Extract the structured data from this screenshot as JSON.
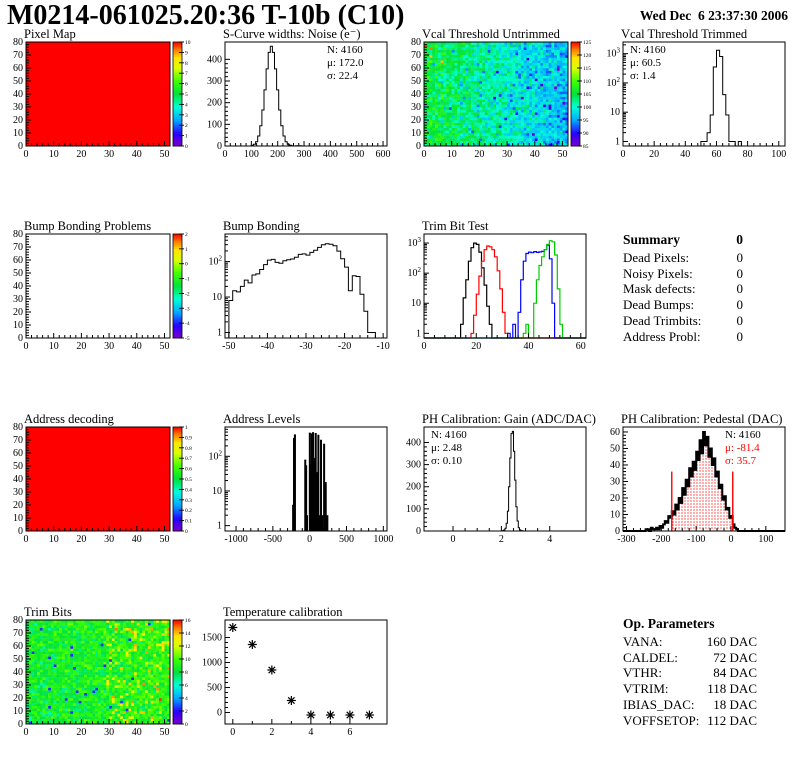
{
  "header": {
    "title": "M0214-061025.20:36 T-10b (C10)",
    "date": "Wed Dec  6 23:37:30 2006"
  },
  "summary": {
    "title": "Summary",
    "total": "0",
    "rows": [
      {
        "label": "Dead Pixels:",
        "value": "0"
      },
      {
        "label": "Noisy Pixels:",
        "value": "0"
      },
      {
        "label": "Mask defects:",
        "value": "0"
      },
      {
        "label": "Dead Bumps:",
        "value": "0"
      },
      {
        "label": "Dead Trimbits:",
        "value": "0"
      },
      {
        "label": "Address Probl:",
        "value": "0"
      }
    ]
  },
  "op_parameters": {
    "title": "Op. Parameters",
    "rows": [
      {
        "label": "VANA:",
        "value": "160 DAC"
      },
      {
        "label": "CALDEL:",
        "value": "72 DAC"
      },
      {
        "label": "VTHR:",
        "value": "84 DAC"
      },
      {
        "label": "VTRIM:",
        "value": "118 DAC"
      },
      {
        "label": "IBIAS_DAC:",
        "value": "18 DAC"
      },
      {
        "label": "VOFFSETOP:",
        "value": "112 DAC"
      }
    ]
  },
  "palette": {
    "axis": "#000000",
    "stat_red": "#ff0000",
    "hist_black": "#000000",
    "hist_red": "#ff0000",
    "hist_blue": "#0000ff",
    "hist_green": "#00cc00"
  },
  "chart_data": [
    {
      "id": "pixel_map",
      "type": "heatmap",
      "mode": "solid",
      "title": "Pixel Map",
      "grid": {
        "col": 0,
        "row": 0
      },
      "value": 10,
      "xlim": [
        0,
        52
      ],
      "ylim": [
        0,
        80
      ],
      "xticks": [
        0,
        10,
        20,
        30,
        40,
        50
      ],
      "yticks": [
        0,
        10,
        20,
        30,
        40,
        50,
        60,
        70,
        80
      ],
      "colorbar": {
        "min": 0,
        "max": 10,
        "ticks": [
          0,
          1,
          2,
          3,
          4,
          5,
          6,
          7,
          8,
          9,
          10
        ]
      }
    },
    {
      "id": "scurve_noise",
      "type": "hist",
      "title": "S-Curve widths: Noise (e⁻)",
      "grid": {
        "col": 1,
        "row": 0
      },
      "stats": {
        "align": "right",
        "lines": [
          {
            "text": "N: 4160"
          },
          {
            "text": "μ: 172.0"
          },
          {
            "text": "σ: 22.4"
          }
        ]
      },
      "bins": {
        "start": 100,
        "width": 8,
        "counts": [
          3,
          8,
          20,
          46,
          93,
          166,
          259,
          356,
          432,
          460,
          432,
          356,
          259,
          166,
          93,
          46,
          20,
          8,
          3,
          1,
          0,
          1,
          0,
          1
        ]
      },
      "xlim": [
        0,
        615
      ],
      "ylim": [
        0,
        480
      ],
      "xticks": [
        0,
        100,
        200,
        300,
        400,
        500,
        600
      ],
      "yticks": [
        0,
        100,
        200,
        300,
        400
      ]
    },
    {
      "id": "vcal_untrimmed",
      "type": "heatmap",
      "mode": "noise",
      "title": "Vcal Threshold Untrimmed",
      "grid": {
        "col": 2,
        "row": 0
      },
      "seed": 7,
      "noise_model": {
        "mean_left": 106,
        "mean_right": 96.5,
        "sigma": 3.5,
        "cold_frac": 0.05,
        "cold_delta": -7,
        "hot_frac": 0.02,
        "hot_value": 119
      },
      "xlim": [
        0,
        52
      ],
      "ylim": [
        0,
        80
      ],
      "xticks": [
        0,
        10,
        20,
        30,
        40,
        50
      ],
      "yticks": [
        0,
        10,
        20,
        30,
        40,
        50,
        60,
        70,
        80
      ],
      "colorbar": {
        "min": 85,
        "max": 125,
        "ticks": [
          85,
          90,
          95,
          100,
          105,
          110,
          115,
          120,
          125
        ]
      }
    },
    {
      "id": "vcal_trimmed",
      "type": "hist",
      "ylog": true,
      "title": "Vcal Threshold Trimmed",
      "grid": {
        "col": 3,
        "row": 0
      },
      "stats": {
        "align": "left",
        "lines": [
          {
            "text": "N: 4160"
          },
          {
            "text": "μ: 60.5"
          },
          {
            "text": "σ:  1.4"
          }
        ]
      },
      "bins": {
        "start": 50,
        "width": 2,
        "counts": [
          1,
          1,
          2,
          8,
          350,
          1300,
          800,
          40,
          8,
          1,
          1,
          0,
          1
        ]
      },
      "xlim": [
        0,
        104
      ],
      "ylim": [
        0.7,
        2500
      ],
      "xticks": [
        0,
        20,
        40,
        60,
        80,
        100
      ]
    },
    {
      "id": "bump_problems",
      "type": "heatmap",
      "mode": "empty",
      "title": "Bump Bonding Problems",
      "grid": {
        "col": 0,
        "row": 1
      },
      "xlim": [
        0,
        52
      ],
      "ylim": [
        0,
        80
      ],
      "xticks": [
        0,
        10,
        20,
        30,
        40,
        50
      ],
      "yticks": [
        0,
        10,
        20,
        30,
        40,
        50,
        60,
        70,
        80
      ],
      "colorbar": {
        "min": -5,
        "max": 2,
        "ticks": [
          -5,
          -4,
          -3,
          -2,
          -1,
          0,
          1,
          2
        ]
      }
    },
    {
      "id": "bump_bonding",
      "type": "hist",
      "ylog": true,
      "title": "Bump Bonding",
      "grid": {
        "col": 1,
        "row": 1
      },
      "bins": {
        "start": -50,
        "width": 1,
        "counts": [
          8,
          15,
          14,
          20,
          30,
          25,
          42,
          45,
          60,
          82,
          110,
          115,
          95,
          90,
          105,
          112,
          118,
          132,
          160,
          165,
          152,
          182,
          210,
          252,
          300,
          320,
          308,
          278,
          198,
          120,
          70,
          15,
          40,
          38,
          12,
          4,
          1,
          1
        ]
      },
      "xlim": [
        -51,
        -9
      ],
      "ylim": [
        0.7,
        600
      ],
      "xticks": [
        -50,
        -40,
        -30,
        -20,
        -10
      ]
    },
    {
      "id": "trimbit_test",
      "type": "multihist",
      "ylog": true,
      "title": "Trim Bit Test",
      "grid": {
        "col": 2,
        "row": 1
      },
      "xlim": [
        0,
        62
      ],
      "ylim": [
        0.7,
        2000
      ],
      "xticks": [
        0,
        20,
        40,
        60
      ],
      "series": [
        {
          "name": "hist-black",
          "color": "#000000",
          "bins": {
            "start": 14,
            "width": 1,
            "counts": [
              2,
              15,
              60,
              250,
              700,
              1000,
              900,
              500,
              150,
              40,
              8,
              2
            ]
          }
        },
        {
          "name": "hist-red",
          "color": "#ff0000",
          "bins": {
            "start": 18,
            "width": 1,
            "counts": [
              1,
              4,
              20,
              80,
              250,
              600,
              800,
              750,
              600,
              350,
              120,
              30,
              5,
              1
            ]
          }
        },
        {
          "name": "hist-blue",
          "color": "#0000ff",
          "bins": {
            "start": 32,
            "width": 1,
            "counts": [
              1,
              0,
              2,
              0,
              5,
              60,
              250,
              450,
              500,
              480,
              520,
              490,
              510,
              530,
              600,
              850,
              300,
              10
            ]
          }
        },
        {
          "name": "hist-green",
          "color": "#00cc00",
          "bins": {
            "start": 38,
            "width": 1,
            "counts": [
              1,
              2,
              0,
              0,
              10,
              60,
              180,
              350,
              600,
              900,
              1200,
              1100,
              400,
              30,
              2
            ]
          }
        }
      ]
    },
    {
      "id": "addr_decoding",
      "type": "heatmap",
      "mode": "solid",
      "title": "Address decoding",
      "grid": {
        "col": 0,
        "row": 2
      },
      "value": 1,
      "xlim": [
        0,
        52
      ],
      "ylim": [
        0,
        80
      ],
      "xticks": [
        0,
        10,
        20,
        30,
        40,
        50
      ],
      "yticks": [
        0,
        10,
        20,
        30,
        40,
        50,
        60,
        70,
        80
      ],
      "colorbar": {
        "min": 0,
        "max": 1,
        "ticks": [
          0,
          0.1,
          0.2,
          0.3,
          0.4,
          0.5,
          0.6,
          0.7,
          0.8,
          0.9,
          1
        ]
      }
    },
    {
      "id": "addr_levels",
      "type": "spikes",
      "ylog": true,
      "title": "Address Levels",
      "grid": {
        "col": 1,
        "row": 2
      },
      "xlim": [
        -1150,
        1050
      ],
      "ylim": [
        0.7,
        700
      ],
      "xticks": [
        -1000,
        -500,
        0,
        500,
        1000
      ],
      "spikes": [
        [
          -225,
          4
        ],
        [
          -213,
          340
        ],
        [
          -200,
          430
        ],
        [
          -60,
          80
        ],
        [
          -48,
          55
        ],
        [
          -36,
          2
        ],
        [
          2,
          480
        ],
        [
          16,
          60
        ],
        [
          28,
          460
        ],
        [
          46,
          500
        ],
        [
          64,
          90
        ],
        [
          82,
          470
        ],
        [
          100,
          35
        ],
        [
          118,
          420
        ],
        [
          136,
          2
        ],
        [
          154,
          300
        ],
        [
          172,
          2
        ],
        [
          196,
          230
        ],
        [
          218,
          18
        ],
        [
          240,
          2
        ]
      ]
    },
    {
      "id": "ph_gain",
      "type": "hist",
      "title": "PH Calibration: Gain (ADC/DAC)",
      "grid": {
        "col": 2,
        "row": 2
      },
      "stats": {
        "align": "left",
        "lines": [
          {
            "text": "N: 4160"
          },
          {
            "text": "μ: 2.48"
          },
          {
            "text": "σ: 0.10"
          }
        ]
      },
      "bins": {
        "start": 2.05,
        "width": 0.05,
        "counts": [
          2,
          5,
          12,
          35,
          90,
          200,
          330,
          440,
          450,
          360,
          230,
          110,
          45,
          15,
          5,
          2,
          1
        ]
      },
      "xlim": [
        -1.2,
        5.5
      ],
      "ylim": [
        0,
        470
      ],
      "xticks": [
        0,
        2,
        4
      ],
      "xsub": 4,
      "yticks": [
        0,
        100,
        200,
        300,
        400
      ]
    },
    {
      "id": "ph_pedestal",
      "type": "hist",
      "lw": 2,
      "title": "PH Calibration: Pedestal (DAC)",
      "grid": {
        "col": 3,
        "row": 2
      },
      "stats": {
        "align": "right",
        "lines": [
          {
            "text": "N: 4160",
            "color": "#000000"
          },
          {
            "text": "μ: -81.4",
            "color": "#ff0000"
          },
          {
            "text": "σ: 35.7",
            "color": "#ff0000"
          }
        ]
      },
      "bins": {
        "start": -250,
        "width": 5,
        "counts": [
          0,
          1,
          1,
          0,
          2,
          1,
          1,
          2,
          1,
          3,
          2,
          4,
          6,
          5,
          9,
          8,
          12,
          10,
          16,
          13,
          20,
          17,
          26,
          22,
          31,
          27,
          38,
          33,
          42,
          37,
          48,
          43,
          55,
          47,
          60,
          52,
          57,
          45,
          50,
          40,
          44,
          33,
          36,
          26,
          28,
          19,
          21,
          13,
          14,
          8,
          9,
          4,
          2,
          1
        ]
      },
      "fill": {
        "range": [
          -170,
          5
        ],
        "style": "red-dots",
        "vline_height": 36,
        "color": "#ff0000"
      },
      "xlim": [
        -310,
        155
      ],
      "ylim": [
        0,
        63
      ],
      "xticks": [
        -300,
        -200,
        -100,
        0,
        100
      ],
      "yticks": [
        0,
        10,
        20,
        30,
        40,
        50,
        60
      ]
    },
    {
      "id": "trim_bits",
      "type": "heatmap",
      "mode": "noise",
      "title": "Trim Bits",
      "grid": {
        "col": 0,
        "row": 3
      },
      "seed": 13,
      "noise_model": {
        "mean_left": 8.4,
        "mean_right": 9.3,
        "sigma": 1.3,
        "warm_frac": 0.13,
        "warm_right_of": 0.55,
        "warm_delta": 3.3,
        "cold_frac": 0.012,
        "cold_value": 2.5
      },
      "xlim": [
        0,
        52
      ],
      "ylim": [
        0,
        80
      ],
      "xticks": [
        0,
        10,
        20,
        30,
        40,
        50
      ],
      "yticks": [
        0,
        10,
        20,
        30,
        40,
        50,
        60,
        70,
        80
      ],
      "colorbar": {
        "min": 0,
        "max": 16,
        "ticks": [
          0,
          2,
          4,
          6,
          8,
          10,
          12,
          14,
          16
        ]
      }
    },
    {
      "id": "temp_cal",
      "type": "scatter",
      "title": "Temperature calibration",
      "grid": {
        "col": 1,
        "row": 3
      },
      "marker": "star",
      "points": [
        [
          0,
          1700
        ],
        [
          1,
          1360
        ],
        [
          2,
          850
        ],
        [
          3,
          240
        ],
        [
          4,
          -50
        ],
        [
          5,
          -50
        ],
        [
          6,
          -50
        ],
        [
          7,
          -50
        ]
      ],
      "xlim": [
        -0.4,
        7.9
      ],
      "ylim": [
        -230,
        1850
      ],
      "xticks": [
        0,
        2,
        4,
        6
      ],
      "xsub": 2,
      "yticks": [
        0,
        500,
        1000,
        1500
      ]
    }
  ]
}
